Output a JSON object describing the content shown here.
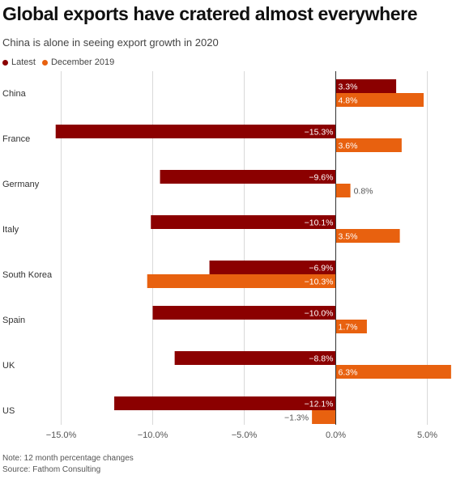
{
  "title": "Global exports have cratered almost everywhere",
  "subtitle": "China is alone in seeing export growth in 2020",
  "legend": [
    {
      "label": "Latest",
      "color": "#8b0000"
    },
    {
      "label": "December 2019",
      "color": "#e8610f"
    }
  ],
  "note": "Note: 12 month percentage changes",
  "source": "Source: Fathom Consulting",
  "chart_data": {
    "type": "bar",
    "orientation": "horizontal",
    "categories": [
      "China",
      "France",
      "Germany",
      "Italy",
      "South Korea",
      "Spain",
      "UK",
      "US"
    ],
    "series": [
      {
        "name": "Latest",
        "color": "#8b0000",
        "values": [
          3.3,
          -15.3,
          -9.6,
          -10.1,
          -6.9,
          -10.0,
          -8.8,
          -12.1
        ]
      },
      {
        "name": "December 2019",
        "color": "#e8610f",
        "values": [
          4.8,
          3.6,
          0.8,
          3.5,
          -10.3,
          1.7,
          6.3,
          -1.3
        ]
      }
    ],
    "value_labels": [
      [
        "3.3%",
        "−15.3%",
        "−9.6%",
        "−10.1%",
        "−6.9%",
        "−10.0%",
        "−8.8%",
        "−12.1%"
      ],
      [
        "4.8%",
        "3.6%",
        "0.8%",
        "3.5%",
        "−10.3%",
        "1.7%",
        "6.3%",
        "−1.3%"
      ]
    ],
    "xlim": [
      -15.8,
      6.3
    ],
    "xticks": [
      -15,
      -10,
      -5,
      0,
      5
    ],
    "xtick_labels": [
      "−15.0%",
      "−10.0%",
      "−5.0%",
      "0.0%",
      "5.0%"
    ],
    "grid": "vertical",
    "legend_position": "top-left"
  }
}
